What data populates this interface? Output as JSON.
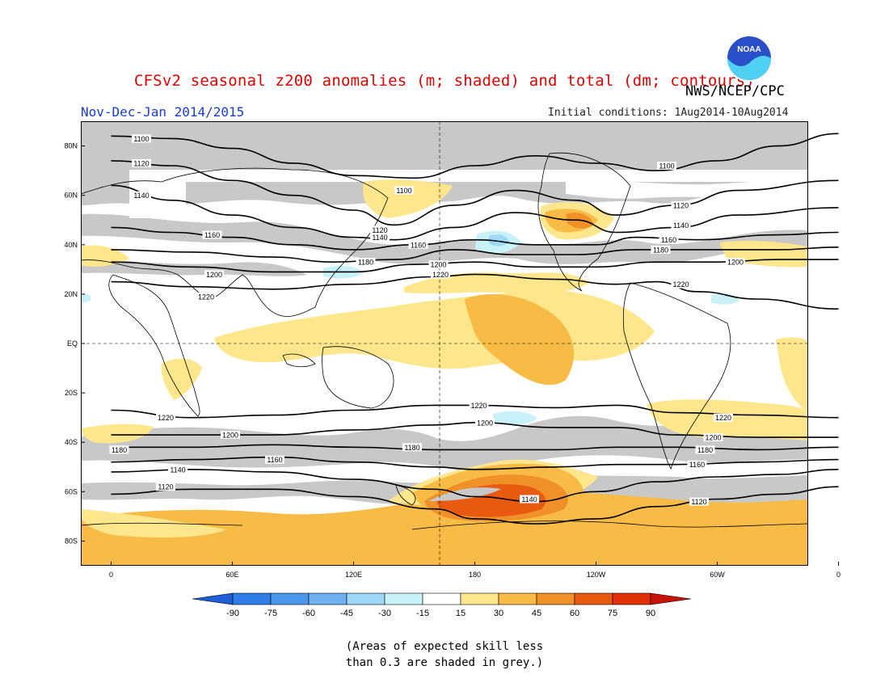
{
  "header": {
    "title": "CFSv2 seasonal z200 anomalies (m; shaded) and total (dm; contours)",
    "org": "NWS/NCEP/CPC",
    "logo_text": "NOAA",
    "period": "Nov-Dec-Jan 2014/2015",
    "initial_conditions": "Initial conditions: 1Aug2014-10Aug2014"
  },
  "map": {
    "lat_labels": [
      "80N",
      "60N",
      "40N",
      "20N",
      "EQ",
      "20S",
      "40S",
      "60S",
      "80S"
    ],
    "lon_labels": [
      "0",
      "60E",
      "120E",
      "180",
      "120W",
      "60W",
      "0"
    ],
    "contours": [
      {
        "label": "1100",
        "points": [
          [
            0,
            84
          ],
          [
            30,
            83
          ],
          [
            60,
            79
          ],
          [
            90,
            73
          ],
          [
            120,
            68
          ],
          [
            150,
            67
          ],
          [
            180,
            72
          ],
          [
            210,
            76
          ],
          [
            240,
            73
          ],
          [
            270,
            70
          ],
          [
            300,
            74
          ],
          [
            330,
            80
          ],
          [
            360,
            85
          ]
        ],
        "labels_at": [
          [
            15,
            83
          ],
          [
            145,
            62
          ],
          [
            275,
            72
          ]
        ]
      },
      {
        "label": "1120",
        "points": [
          [
            0,
            74
          ],
          [
            30,
            72
          ],
          [
            60,
            66
          ],
          [
            90,
            60
          ],
          [
            120,
            54
          ],
          [
            140,
            48
          ],
          [
            170,
            56
          ],
          [
            200,
            62
          ],
          [
            230,
            58
          ],
          [
            250,
            52
          ],
          [
            280,
            56
          ],
          [
            310,
            62
          ],
          [
            360,
            66
          ]
        ],
        "labels_at": [
          [
            15,
            73
          ],
          [
            133,
            46
          ],
          [
            282,
            56
          ]
        ]
      },
      {
        "label": "1140",
        "points": [
          [
            0,
            64
          ],
          [
            30,
            58
          ],
          [
            60,
            52
          ],
          [
            90,
            47
          ],
          [
            120,
            43
          ],
          [
            140,
            42
          ],
          [
            170,
            47
          ],
          [
            200,
            53
          ],
          [
            230,
            50
          ],
          [
            250,
            45
          ],
          [
            280,
            47
          ],
          [
            310,
            52
          ],
          [
            360,
            55
          ]
        ],
        "labels_at": [
          [
            15,
            60
          ],
          [
            133,
            43
          ],
          [
            282,
            48
          ]
        ]
      },
      {
        "label": "1160",
        "points": [
          [
            0,
            47
          ],
          [
            30,
            45
          ],
          [
            60,
            43
          ],
          [
            90,
            40
          ],
          [
            120,
            38
          ],
          [
            150,
            40
          ],
          [
            180,
            42
          ],
          [
            210,
            40
          ],
          [
            240,
            40
          ],
          [
            260,
            43
          ],
          [
            290,
            42
          ],
          [
            330,
            44
          ],
          [
            360,
            45
          ]
        ],
        "labels_at": [
          [
            50,
            44
          ],
          [
            152,
            40
          ],
          [
            276,
            42
          ]
        ]
      },
      {
        "label": "1180",
        "points": [
          [
            0,
            38
          ],
          [
            40,
            37
          ],
          [
            80,
            35
          ],
          [
            110,
            33
          ],
          [
            140,
            34
          ],
          [
            170,
            38
          ],
          [
            200,
            36
          ],
          [
            230,
            36
          ],
          [
            260,
            38
          ],
          [
            290,
            38
          ],
          [
            330,
            38
          ],
          [
            360,
            39
          ]
        ],
        "labels_at": [
          [
            126,
            33
          ],
          [
            272,
            38
          ]
        ]
      },
      {
        "label": "1200",
        "points": [
          [
            0,
            33
          ],
          [
            40,
            31
          ],
          [
            80,
            29
          ],
          [
            120,
            29
          ],
          [
            150,
            32
          ],
          [
            180,
            33
          ],
          [
            210,
            31
          ],
          [
            240,
            31
          ],
          [
            270,
            33
          ],
          [
            300,
            33
          ],
          [
            330,
            34
          ],
          [
            360,
            34
          ]
        ],
        "labels_at": [
          [
            51,
            28
          ],
          [
            162,
            32
          ],
          [
            309,
            33
          ]
        ]
      },
      {
        "label": "1220",
        "points": [
          [
            0,
            25
          ],
          [
            40,
            23
          ],
          [
            80,
            22
          ],
          [
            120,
            24
          ],
          [
            160,
            27
          ],
          [
            180,
            28
          ],
          [
            220,
            26
          ],
          [
            250,
            24
          ],
          [
            270,
            25
          ],
          [
            290,
            21
          ],
          [
            320,
            18
          ],
          [
            360,
            14
          ]
        ],
        "labels_at": [
          [
            47,
            19
          ],
          [
            163,
            28
          ],
          [
            282,
            24
          ]
        ]
      },
      {
        "label": "1220",
        "points": [
          [
            0,
            -27
          ],
          [
            40,
            -30
          ],
          [
            80,
            -29
          ],
          [
            120,
            -27
          ],
          [
            160,
            -25
          ],
          [
            180,
            -25
          ],
          [
            220,
            -26
          ],
          [
            250,
            -25
          ],
          [
            280,
            -28
          ],
          [
            320,
            -29
          ],
          [
            360,
            -30
          ]
        ],
        "labels_at": [
          [
            27,
            -30
          ],
          [
            182,
            -25
          ],
          [
            303,
            -30
          ]
        ]
      },
      {
        "label": "1200",
        "points": [
          [
            0,
            -37
          ],
          [
            40,
            -37
          ],
          [
            80,
            -37
          ],
          [
            120,
            -35
          ],
          [
            160,
            -33
          ],
          [
            180,
            -32
          ],
          [
            220,
            -34
          ],
          [
            250,
            -34
          ],
          [
            280,
            -37
          ],
          [
            320,
            -38
          ],
          [
            360,
            -38
          ]
        ],
        "labels_at": [
          [
            59,
            -37
          ],
          [
            185,
            -32
          ],
          [
            298,
            -38
          ]
        ]
      },
      {
        "label": "1180",
        "points": [
          [
            0,
            -42
          ],
          [
            40,
            -42
          ],
          [
            80,
            -41
          ],
          [
            120,
            -42
          ],
          [
            160,
            -43
          ],
          [
            180,
            -43
          ],
          [
            220,
            -43
          ],
          [
            250,
            -42
          ],
          [
            280,
            -42
          ],
          [
            320,
            -43
          ],
          [
            360,
            -42
          ]
        ],
        "labels_at": [
          [
            4,
            -43
          ],
          [
            149,
            -42
          ],
          [
            294,
            -43
          ]
        ]
      },
      {
        "label": "1160",
        "points": [
          [
            0,
            -48
          ],
          [
            40,
            -47
          ],
          [
            80,
            -46
          ],
          [
            120,
            -48
          ],
          [
            160,
            -50
          ],
          [
            180,
            -51
          ],
          [
            220,
            -50
          ],
          [
            250,
            -49
          ],
          [
            280,
            -49
          ],
          [
            320,
            -48
          ],
          [
            360,
            -47
          ]
        ],
        "labels_at": [
          [
            81,
            -47
          ],
          [
            290,
            -49
          ]
        ]
      },
      {
        "label": "1140",
        "points": [
          [
            0,
            -52
          ],
          [
            40,
            -51
          ],
          [
            80,
            -52
          ],
          [
            120,
            -55
          ],
          [
            160,
            -59
          ],
          [
            180,
            -62
          ],
          [
            210,
            -64
          ],
          [
            240,
            -60
          ],
          [
            270,
            -56
          ],
          [
            300,
            -54
          ],
          [
            330,
            -53
          ],
          [
            360,
            -51
          ]
        ],
        "labels_at": [
          [
            33,
            -51
          ],
          [
            207,
            -63
          ]
        ]
      },
      {
        "label": "1120",
        "points": [
          [
            0,
            -61
          ],
          [
            40,
            -59
          ],
          [
            80,
            -59
          ],
          [
            120,
            -62
          ],
          [
            160,
            -67
          ],
          [
            180,
            -71
          ],
          [
            210,
            -73
          ],
          [
            240,
            -71
          ],
          [
            270,
            -66
          ],
          [
            300,
            -63
          ],
          [
            330,
            -61
          ],
          [
            360,
            -58
          ]
        ],
        "labels_at": [
          [
            27,
            -58
          ],
          [
            291,
            -64
          ]
        ]
      }
    ]
  },
  "colorbar": {
    "labels": [
      "-90",
      "-75",
      "-60",
      "-45",
      "-30",
      "-15",
      "15",
      "30",
      "45",
      "60",
      "75",
      "90"
    ],
    "colors": [
      "#1e5fd8",
      "#2f7de6",
      "#4a96ea",
      "#6fb0f0",
      "#9fd8f6",
      "#c8f2f8",
      "#ffffff",
      "#fde68c",
      "#f8bc46",
      "#f09028",
      "#e85a10",
      "#e03008",
      "#c81408"
    ]
  },
  "skill_note": {
    "line1": "(Areas of expected skill less",
    "line2": "than 0.3 are shaded in grey.)"
  }
}
